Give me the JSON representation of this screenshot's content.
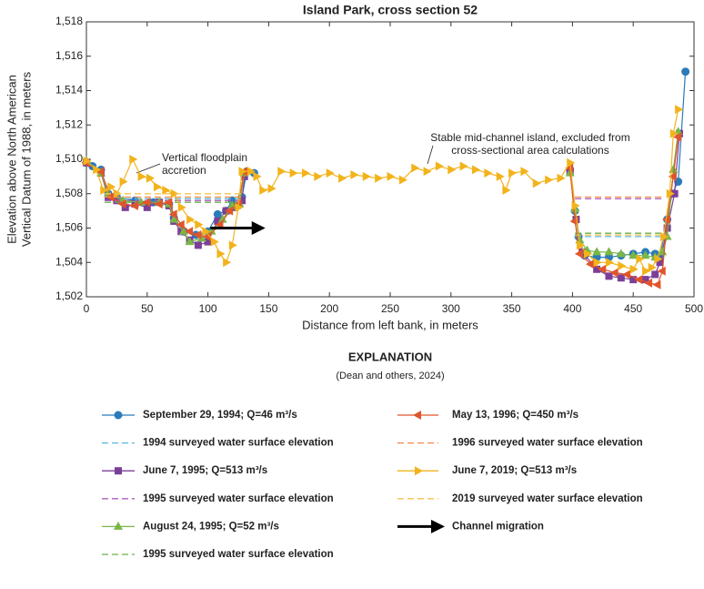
{
  "chart_data": {
    "type": "line",
    "title": "Island Park, cross section 52",
    "x_label": "Distance from left bank, in meters",
    "y_label": [
      "Elevation above North American",
      "Vertical Datum of 1988, in meters"
    ],
    "xlim": [
      0,
      500
    ],
    "xticks": [
      0,
      50,
      100,
      150,
      200,
      250,
      300,
      350,
      400,
      450,
      500
    ],
    "ylim": [
      1502,
      1518
    ],
    "yticks": [
      {
        "value": 1502,
        "label": "1,502"
      },
      {
        "value": 1504,
        "label": "1,504"
      },
      {
        "value": 1506,
        "label": "1,506"
      },
      {
        "value": 1508,
        "label": "1,508"
      },
      {
        "value": 1510,
        "label": "1,510"
      },
      {
        "value": 1512,
        "label": "1,512"
      },
      {
        "value": 1514,
        "label": "1,514"
      },
      {
        "value": 1516,
        "label": "1,516"
      },
      {
        "value": 1518,
        "label": "1,518"
      }
    ],
    "legend_title": "EXPLANATION",
    "legend_source": "(Dean and others, 2024)",
    "annotations": [
      {
        "text": [
          "Vertical floodplain",
          "accretion"
        ]
      },
      {
        "text": [
          "Stable mid-channel island, excluded from",
          "cross-sectional area calculations"
        ]
      }
    ],
    "series": [
      {
        "name": "September 29, 1994; Q=46 m³/s",
        "color": "#2b7bba",
        "marker": "circle",
        "x": [
          0,
          5,
          12,
          18,
          25,
          40,
          55,
          68,
          72,
          80,
          90,
          100,
          108,
          115,
          120,
          125,
          128,
          132,
          138,
          null,
          398,
          402,
          405,
          410,
          420,
          430,
          440,
          450,
          460,
          468,
          472,
          478,
          482,
          487,
          493
        ],
        "values": [
          1509.8,
          1509.6,
          1509.4,
          1508.0,
          1507.8,
          1507.6,
          1507.5,
          1507.4,
          1506.6,
          1505.8,
          1505.6,
          1505.8,
          1506.8,
          1507.0,
          1507.6,
          1507.3,
          1507.8,
          1509.3,
          1509.2,
          null,
          1509.4,
          1507.0,
          1505.5,
          1504.4,
          1504.3,
          1504.3,
          1504.4,
          1504.5,
          1504.6,
          1504.5,
          1504.3,
          1506.5,
          1508.0,
          1508.7,
          1515.1
        ]
      },
      {
        "name": "1994 surveyed water surface elevation",
        "color": "#5bb6e0",
        "dash": true,
        "x": [
          15,
          128,
          null,
          402,
          475
        ],
        "values": [
          1507.7,
          1507.7,
          null,
          1505.5,
          1505.5
        ]
      },
      {
        "name": "June 7, 1995; Q=513 m³/s",
        "color": "#7b3f98",
        "marker": "square",
        "x": [
          0,
          12,
          18,
          25,
          32,
          40,
          50,
          60,
          68,
          72,
          78,
          85,
          92,
          100,
          108,
          115,
          122,
          128,
          130,
          null,
          398,
          403,
          408,
          420,
          430,
          440,
          450,
          460,
          468,
          472,
          478,
          484,
          488
        ],
        "values": [
          1509.8,
          1509.2,
          1507.8,
          1507.6,
          1507.2,
          1507.4,
          1507.2,
          1507.5,
          1507.3,
          1506.4,
          1505.8,
          1505.3,
          1505.0,
          1505.2,
          1506.4,
          1507.0,
          1507.2,
          1507.6,
          1509.0,
          null,
          1509.3,
          1506.5,
          1504.6,
          1503.6,
          1503.2,
          1503.1,
          1503.0,
          1503.0,
          1503.3,
          1504.0,
          1506.0,
          1508.0,
          1511.5
        ]
      },
      {
        "name": "1995 surveyed water surface elevation",
        "color": "#b05cc0",
        "dash": true,
        "x": [
          15,
          128,
          null,
          402,
          475
        ],
        "values": [
          1507.6,
          1507.6,
          null,
          1507.7,
          1507.7
        ]
      },
      {
        "name": "August 24, 1995; Q=52 m³/s",
        "color": "#7ab648",
        "marker": "triangle-up",
        "x": [
          0,
          12,
          18,
          30,
          45,
          60,
          68,
          72,
          80,
          85,
          95,
          103,
          112,
          120,
          126,
          130,
          null,
          398,
          402,
          406,
          412,
          420,
          430,
          440,
          450,
          460,
          468,
          474,
          478,
          483,
          487
        ],
        "values": [
          1509.9,
          1509.2,
          1508.0,
          1507.6,
          1507.5,
          1507.5,
          1507.4,
          1506.5,
          1505.8,
          1505.2,
          1505.4,
          1505.8,
          1506.5,
          1507.3,
          1507.4,
          1509.2,
          null,
          1509.2,
          1507.1,
          1505.3,
          1504.7,
          1504.6,
          1504.6,
          1504.5,
          1504.4,
          1504.4,
          1504.3,
          1504.6,
          1505.5,
          1509.4,
          1511.6
        ]
      },
      {
        "name": "1995 surveyed water surface elevation",
        "color": "#6ab04c",
        "dash": true,
        "x": [
          15,
          128,
          null,
          402,
          475
        ],
        "values": [
          1507.5,
          1507.5,
          null,
          1505.7,
          1505.7
        ]
      },
      {
        "name": "May 13, 1996; Q=450 m³/s",
        "color": "#e0552b",
        "marker": "triangle-left",
        "x": [
          0,
          12,
          20,
          30,
          40,
          50,
          60,
          68,
          72,
          78,
          85,
          92,
          100,
          110,
          118,
          125,
          130,
          null,
          398,
          402,
          406,
          415,
          425,
          435,
          445,
          455,
          463,
          470,
          474,
          478,
          483,
          487
        ],
        "values": [
          1509.8,
          1509.3,
          1507.8,
          1507.4,
          1507.3,
          1507.5,
          1507.4,
          1507.5,
          1506.8,
          1506.2,
          1505.8,
          1505.6,
          1505.5,
          1506.2,
          1507.0,
          1507.4,
          1509.3,
          null,
          1509.5,
          1506.4,
          1504.5,
          1503.9,
          1503.6,
          1503.4,
          1503.3,
          1503.0,
          1502.8,
          1502.7,
          1503.5,
          1506.5,
          1509.0,
          1511.3
        ]
      },
      {
        "name": "1996 surveyed water surface elevation",
        "color": "#f08a4b",
        "dash": true,
        "x": [
          15,
          128,
          null,
          402,
          475
        ],
        "values": [
          1507.8,
          1507.8,
          null,
          1507.8,
          1507.8
        ]
      },
      {
        "name": "June 7, 2019; Q=513 m³/s",
        "color": "#f2b31b",
        "marker": "triangle-right",
        "x": [
          0,
          8,
          14,
          20,
          25,
          30,
          38,
          45,
          52,
          58,
          65,
          72,
          78,
          85,
          92,
          98,
          105,
          110,
          115,
          120,
          125,
          128,
          135,
          140,
          145,
          152,
          160,
          170,
          180,
          190,
          200,
          210,
          220,
          230,
          240,
          250,
          260,
          270,
          280,
          290,
          300,
          310,
          320,
          330,
          340,
          345,
          350,
          360,
          370,
          380,
          390,
          398,
          402,
          406,
          412,
          420,
          430,
          440,
          450,
          455,
          460,
          465,
          470,
          475,
          480,
          483,
          487
        ],
        "values": [
          1509.9,
          1509.4,
          1508.2,
          1508.4,
          1508.0,
          1508.7,
          1510.0,
          1509.0,
          1508.9,
          1508.4,
          1508.2,
          1508.0,
          1507.2,
          1506.5,
          1506.2,
          1505.8,
          1505.2,
          1504.5,
          1504.0,
          1505.0,
          1507.2,
          1509.3,
          1509.3,
          1509.0,
          1508.2,
          1508.3,
          1509.3,
          1509.2,
          1509.2,
          1509.0,
          1509.2,
          1508.9,
          1509.1,
          1509.0,
          1508.9,
          1509.0,
          1508.8,
          1509.5,
          1509.3,
          1509.6,
          1509.4,
          1509.6,
          1509.4,
          1509.2,
          1509.0,
          1508.2,
          1509.2,
          1509.3,
          1508.6,
          1508.8,
          1508.9,
          1509.8,
          1507.3,
          1505.0,
          1504.5,
          1504.0,
          1504.0,
          1503.8,
          1503.6,
          1504.2,
          1503.5,
          1503.7,
          1504.2,
          1505.5,
          1508.0,
          1511.5,
          1512.9
        ]
      },
      {
        "name": "2019 surveyed water surface elevation",
        "color": "#f4c24d",
        "dash": true,
        "x": [
          15,
          128,
          null,
          402,
          475
        ],
        "values": [
          1508.0,
          1508.0,
          null,
          1505.6,
          1505.6
        ]
      },
      {
        "name": "Channel migration",
        "color": "#000000",
        "arrow": true,
        "x": [
          102,
          145
        ],
        "values": [
          1506.0,
          1506.0
        ]
      }
    ]
  }
}
